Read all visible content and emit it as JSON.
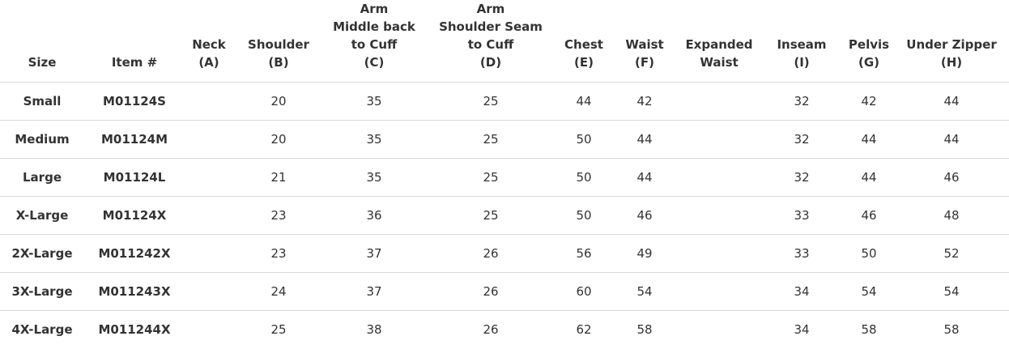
{
  "table": {
    "headers": [
      [
        "",
        "",
        "Size"
      ],
      [
        "",
        "",
        "Item #"
      ],
      [
        "",
        "Neck",
        "(A)"
      ],
      [
        "",
        "Shoulder",
        "(B)"
      ],
      [
        "Arm",
        "Middle back",
        "to Cuff",
        "(C)"
      ],
      [
        "Arm",
        "Shoulder Seam",
        "to Cuff",
        "(D)"
      ],
      [
        "",
        "Chest",
        "(E)"
      ],
      [
        "",
        "Waist",
        "(F)"
      ],
      [
        "",
        "Expanded",
        "Waist"
      ],
      [
        "",
        "Inseam",
        "(I)"
      ],
      [
        "",
        "Pelvis",
        "(G)"
      ],
      [
        "",
        "Under Zipper",
        "(H)"
      ]
    ],
    "rows": [
      [
        "Small",
        "M01124S",
        "",
        "20",
        "35",
        "25",
        "44",
        "42",
        "",
        "32",
        "42",
        "44"
      ],
      [
        "Medium",
        "M01124M",
        "",
        "20",
        "35",
        "25",
        "50",
        "44",
        "",
        "32",
        "44",
        "44"
      ],
      [
        "Large",
        "M01124L",
        "",
        "21",
        "35",
        "25",
        "50",
        "44",
        "",
        "32",
        "44",
        "46"
      ],
      [
        "X-Large",
        "M01124X",
        "",
        "23",
        "36",
        "25",
        "50",
        "46",
        "",
        "33",
        "46",
        "48"
      ],
      [
        "2X-Large",
        "M011242X",
        "",
        "23",
        "37",
        "26",
        "56",
        "49",
        "",
        "33",
        "50",
        "52"
      ],
      [
        "3X-Large",
        "M011243X",
        "",
        "24",
        "37",
        "26",
        "60",
        "54",
        "",
        "34",
        "54",
        "54"
      ],
      [
        "4X-Large",
        "M011244X",
        "",
        "25",
        "38",
        "26",
        "62",
        "58",
        "",
        "34",
        "58",
        "58"
      ]
    ]
  }
}
